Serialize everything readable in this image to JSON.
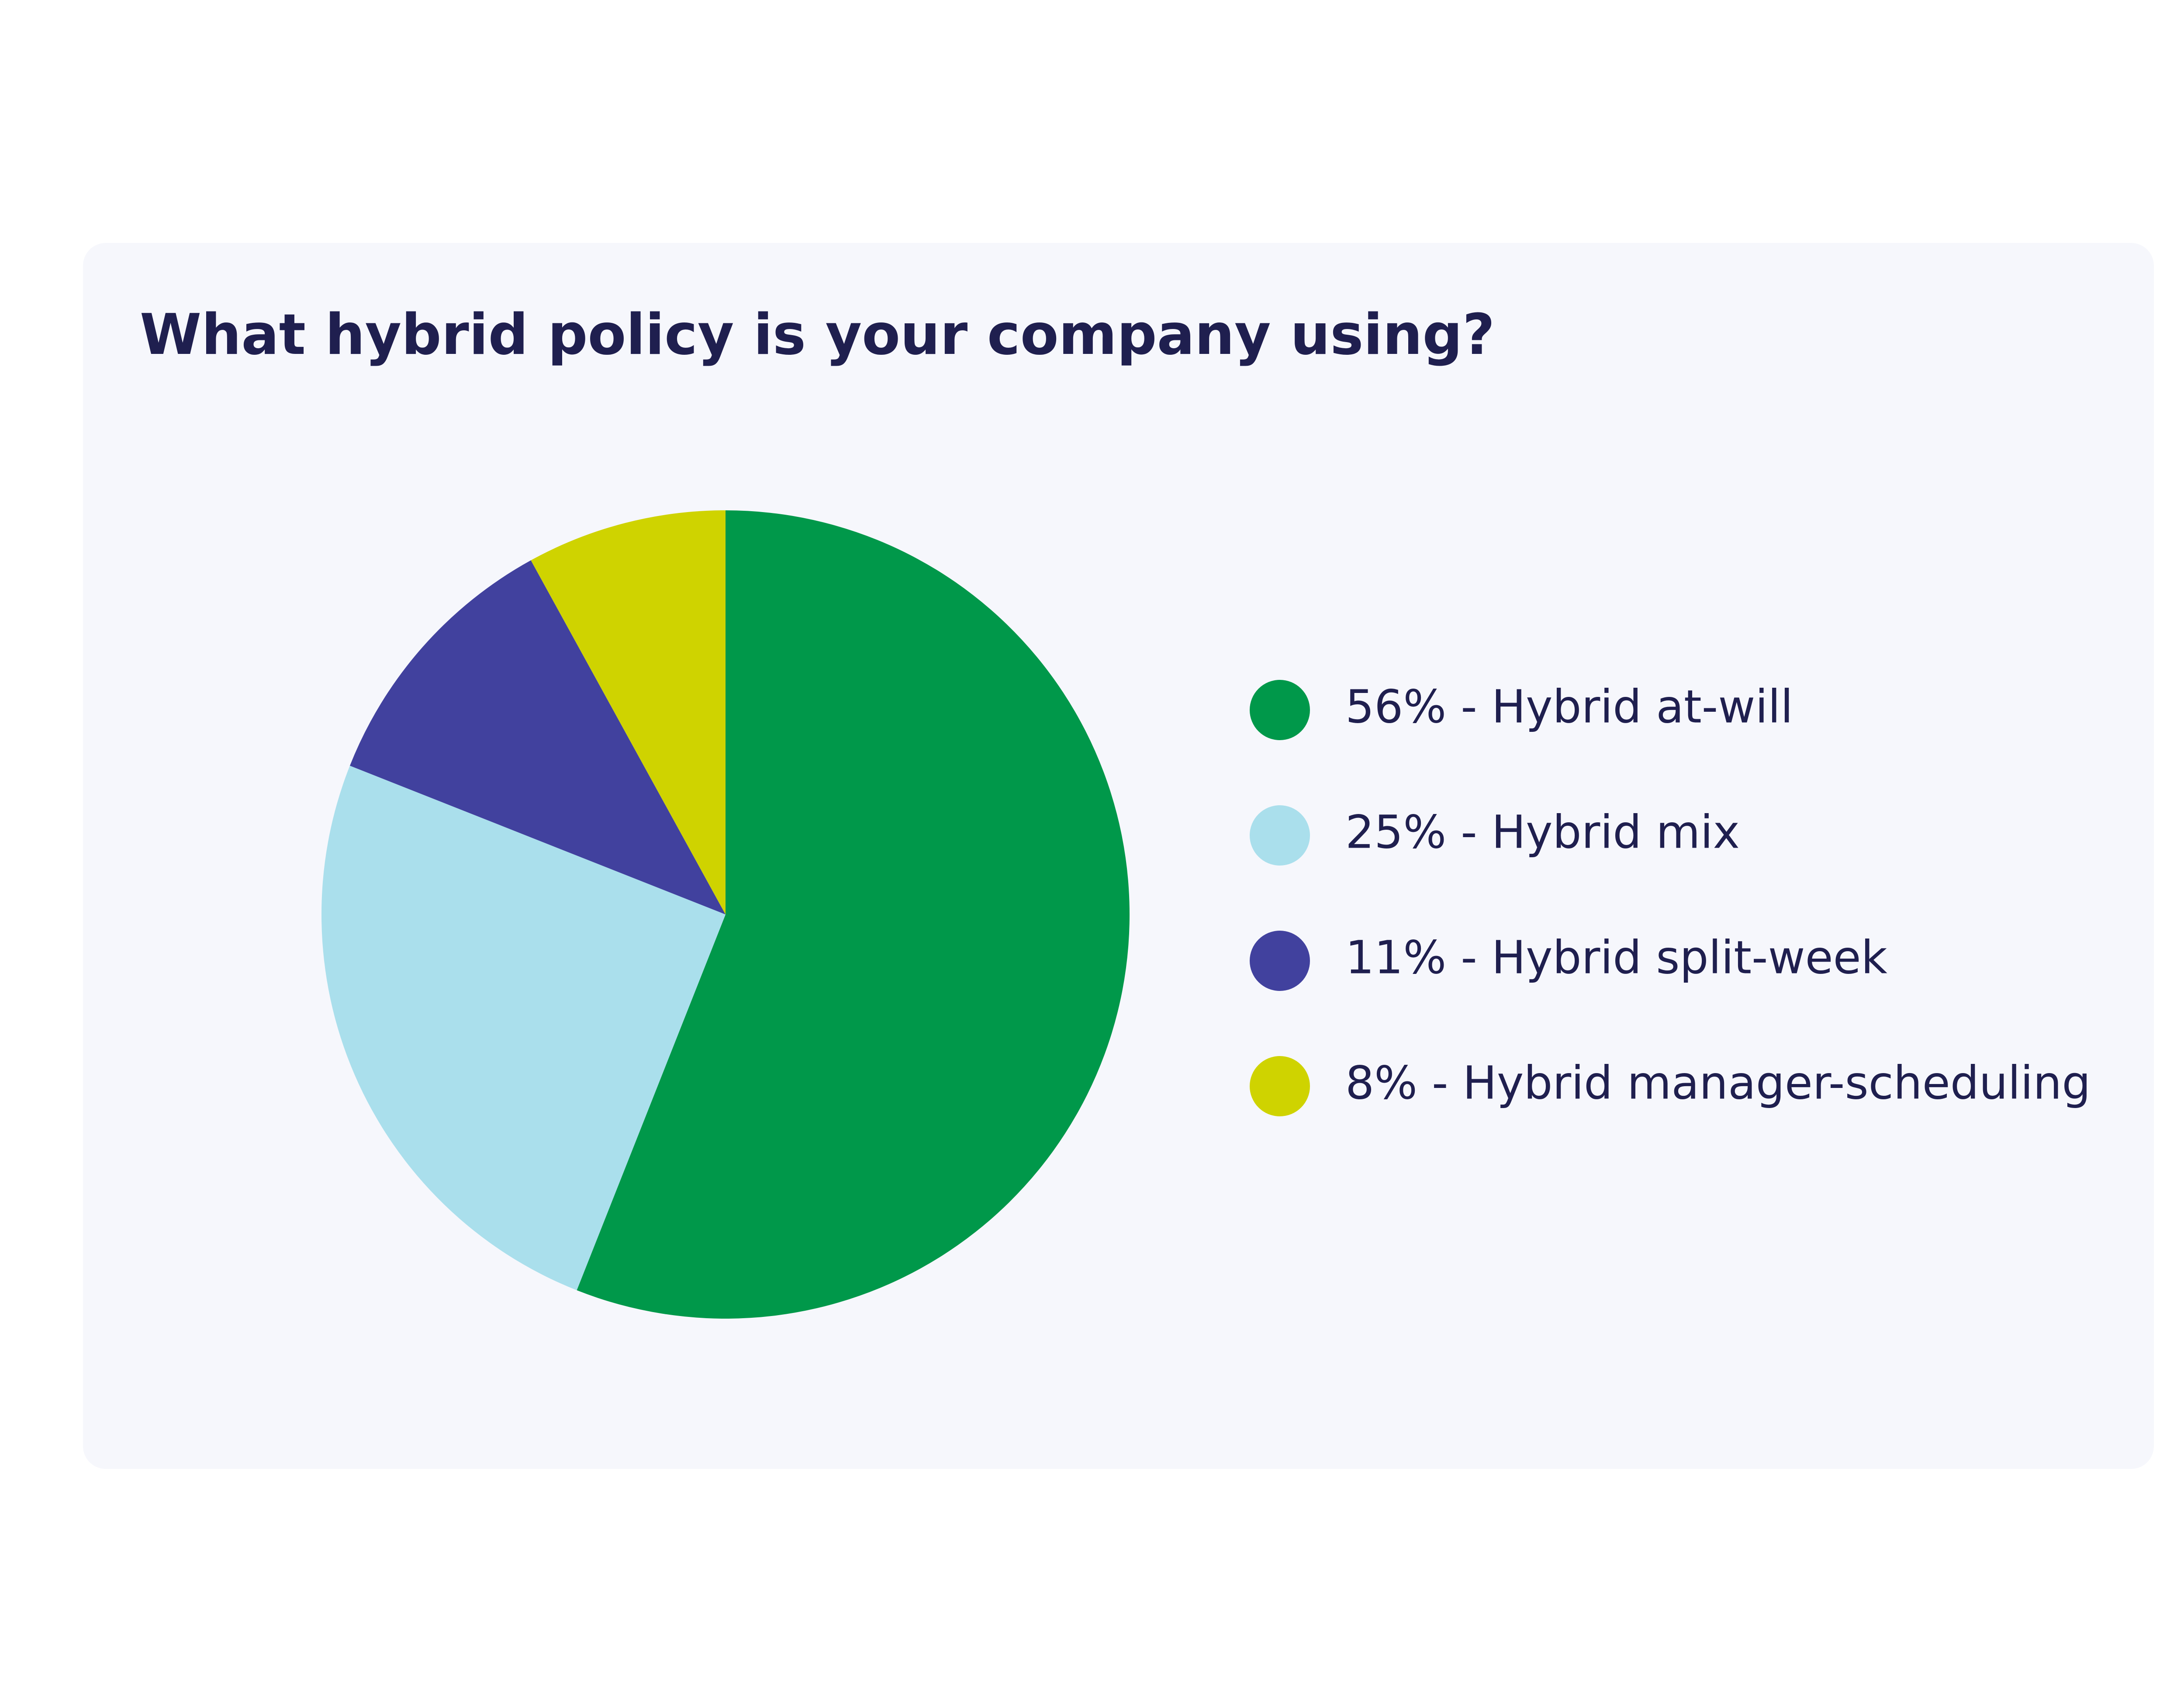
{
  "chart_data": {
    "type": "pie",
    "title": "What hybrid policy is your company using?",
    "categories": [
      "56% - Hybrid at-will",
      "25% - Hybrid mix",
      "11% - Hybrid split-week",
      "8% - Hybrid manager-scheduling"
    ],
    "values": [
      56,
      25,
      11,
      8
    ],
    "colors": [
      "#00984a",
      "#aadfec",
      "#41419e",
      "#cfd300"
    ],
    "legend": "right"
  }
}
